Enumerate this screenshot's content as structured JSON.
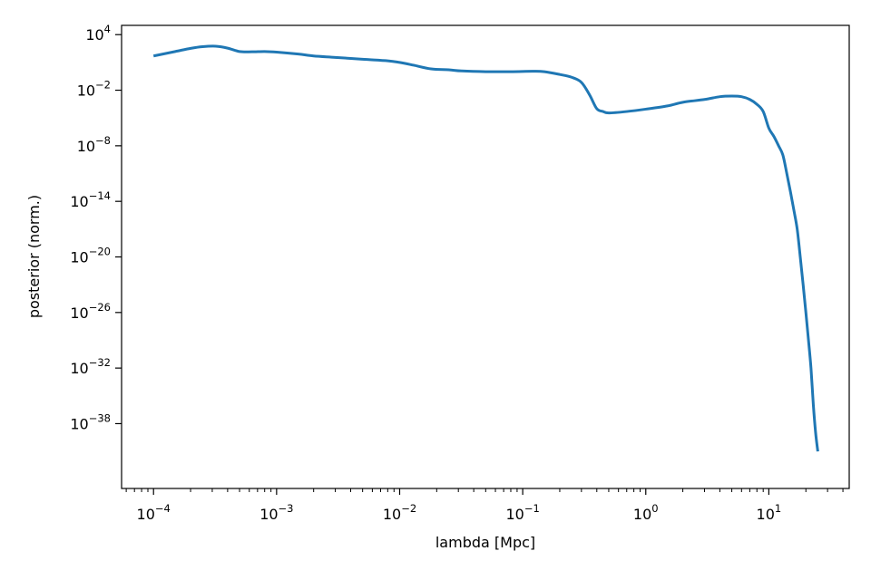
{
  "chart_data": {
    "type": "line",
    "title": "",
    "xlabel": "lambda [Mpc]",
    "ylabel": "posterior (norm.)",
    "xscale": "log",
    "yscale": "log",
    "xlim": [
      5.5e-05,
      45
    ],
    "ylim": [
      1e-45,
      100000.0
    ],
    "grid": false,
    "legend": "none",
    "line_color": "#1f77b4",
    "x_ticks": [
      {
        "value": 0.0001,
        "base": "10",
        "exp": "−4"
      },
      {
        "value": 0.001,
        "base": "10",
        "exp": "−3"
      },
      {
        "value": 0.01,
        "base": "10",
        "exp": "−2"
      },
      {
        "value": 0.1,
        "base": "10",
        "exp": "−1"
      },
      {
        "value": 1,
        "base": "10",
        "exp": "0"
      },
      {
        "value": 10,
        "base": "10",
        "exp": "1"
      }
    ],
    "y_ticks": [
      {
        "value": 10000.0,
        "base": "10",
        "exp": "4"
      },
      {
        "value": 0.01,
        "base": "10",
        "exp": "−2"
      },
      {
        "value": 1e-08,
        "base": "10",
        "exp": "−8"
      },
      {
        "value": 1e-14,
        "base": "10",
        "exp": "−14"
      },
      {
        "value": 1e-20,
        "base": "10",
        "exp": "−20"
      },
      {
        "value": 1e-26,
        "base": "10",
        "exp": "−26"
      },
      {
        "value": 1e-32,
        "base": "10",
        "exp": "−32"
      },
      {
        "value": 1e-38,
        "base": "10",
        "exp": "−38"
      }
    ],
    "series": [
      {
        "points": [
          [
            0.0001,
            50
          ],
          [
            0.00015,
            150
          ],
          [
            0.0002,
            330
          ],
          [
            0.00025,
            500
          ],
          [
            0.00032,
            560
          ],
          [
            0.0004,
            350
          ],
          [
            0.0005,
            150
          ],
          [
            0.00063,
            140
          ],
          [
            0.0008,
            150
          ],
          [
            0.001,
            130
          ],
          [
            0.0015,
            80
          ],
          [
            0.002,
            50
          ],
          [
            0.003,
            35
          ],
          [
            0.005,
            22
          ],
          [
            0.008,
            15
          ],
          [
            0.01,
            10
          ],
          [
            0.013,
            5
          ],
          [
            0.018,
            2
          ],
          [
            0.025,
            1.6
          ],
          [
            0.032,
            1.2
          ],
          [
            0.05,
            1.0
          ],
          [
            0.08,
            1.0
          ],
          [
            0.12,
            1.1
          ],
          [
            0.15,
            1.0
          ],
          [
            0.2,
            0.5
          ],
          [
            0.25,
            0.25
          ],
          [
            0.3,
            0.07
          ],
          [
            0.35,
            0.003
          ],
          [
            0.4,
            0.0001
          ],
          [
            0.45,
            5e-05
          ],
          [
            0.5,
            3.5e-05
          ],
          [
            0.7,
            5e-05
          ],
          [
            1,
            9e-05
          ],
          [
            1.5,
            0.0002
          ],
          [
            2,
            0.0005
          ],
          [
            3,
            0.001
          ],
          [
            4,
            0.002
          ],
          [
            5,
            0.0023
          ],
          [
            6,
            0.002
          ],
          [
            7,
            0.001
          ],
          [
            8,
            0.0003
          ],
          [
            9,
            5e-05
          ],
          [
            10,
            8e-07
          ],
          [
            11,
            1e-07
          ],
          [
            12,
            1e-08
          ],
          [
            13,
            1e-09
          ],
          [
            14,
            1e-11
          ],
          [
            15,
            1e-13
          ],
          [
            16,
            1e-15
          ],
          [
            17,
            1e-17
          ],
          [
            18,
            1e-20
          ],
          [
            19,
            1e-23
          ],
          [
            20,
            1e-26
          ],
          [
            21,
            1e-29
          ],
          [
            22,
            1e-32
          ],
          [
            23,
            1e-36
          ],
          [
            24,
            1e-39
          ],
          [
            25,
            1e-41
          ]
        ]
      }
    ]
  }
}
